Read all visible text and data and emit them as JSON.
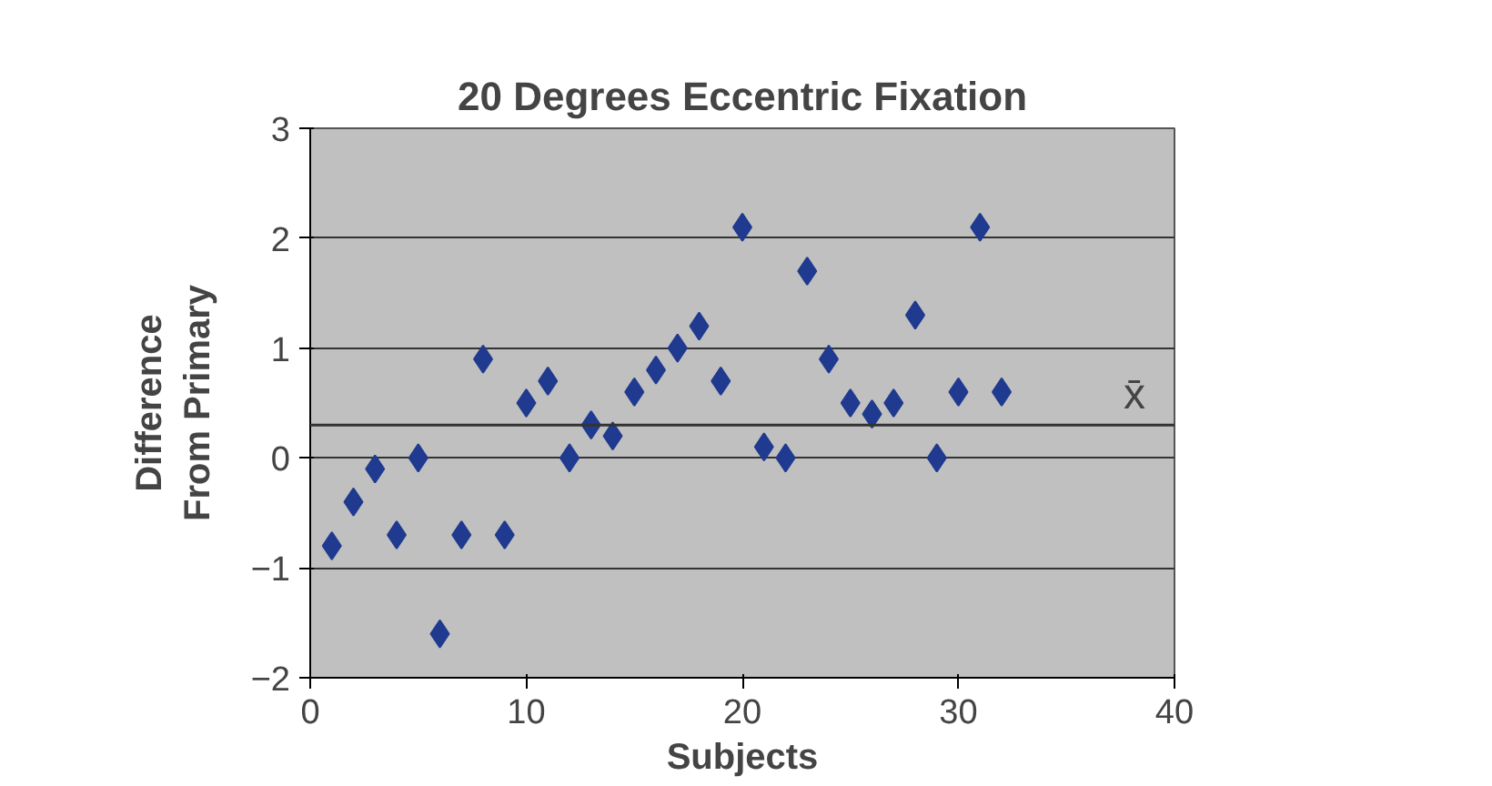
{
  "chart_data": {
    "type": "scatter",
    "title": "20 Degrees Eccentric Fixation",
    "xlabel": "Subjects",
    "ylabel": "Difference\nFrom Primary",
    "x": [
      1,
      2,
      3,
      4,
      5,
      6,
      7,
      8,
      9,
      10,
      11,
      12,
      13,
      14,
      15,
      16,
      17,
      18,
      19,
      20,
      21,
      22,
      23,
      24,
      25,
      26,
      27,
      28,
      29,
      30,
      31,
      32
    ],
    "series": [
      {
        "color": "#1f3a8f",
        "values": [
          -0.8,
          -0.4,
          -0.1,
          -0.7,
          0.0,
          -1.6,
          -0.7,
          0.9,
          -0.7,
          0.5,
          0.7,
          0.0,
          0.3,
          0.2,
          0.6,
          0.8,
          1.0,
          1.2,
          0.7,
          2.1,
          0.1,
          0.0,
          1.7,
          0.9,
          0.5,
          0.4,
          0.5,
          1.3,
          0.0,
          0.6,
          2.1,
          0.6
        ]
      }
    ],
    "xlim": [
      0,
      40
    ],
    "ylim": [
      -2,
      3
    ],
    "xticks": [
      0,
      10,
      20,
      30,
      40
    ],
    "yticks": [
      -2,
      -1,
      0,
      1,
      2,
      3
    ],
    "grid": "y",
    "marker": "diamond",
    "ref_lines": [
      {
        "axis": "y",
        "value": 0.3,
        "label": "x̄",
        "color": "#333333"
      }
    ]
  }
}
